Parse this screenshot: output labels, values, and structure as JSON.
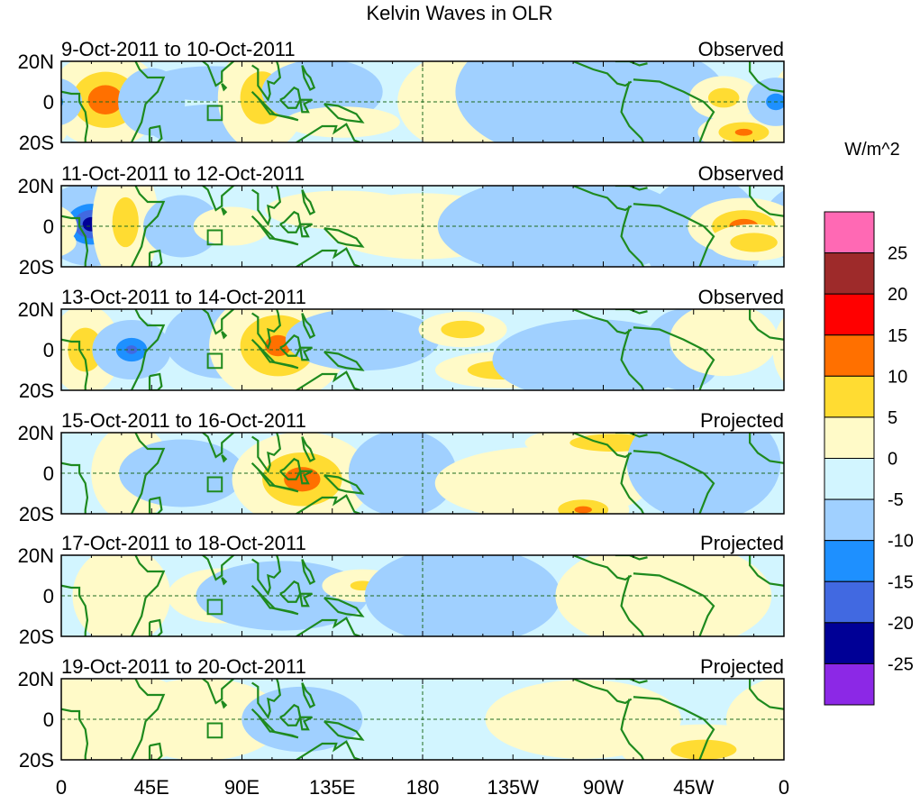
{
  "chart_data": {
    "type": "heatmap",
    "title": "Kelvin Waves in OLR",
    "units_label": "W/m^2",
    "x_ticks": [
      "0",
      "45E",
      "90E",
      "135E",
      "180",
      "135W",
      "90W",
      "45W",
      "0"
    ],
    "x_tick_values": [
      0,
      45,
      90,
      135,
      180,
      225,
      270,
      315,
      360
    ],
    "y_ticks": [
      "20N",
      "0",
      "20S"
    ],
    "lat_range": [
      -20,
      20
    ],
    "lon_range": [
      0,
      360
    ],
    "colorbar": {
      "levels": [
        -25,
        -20,
        -15,
        -10,
        -5,
        0,
        5,
        10,
        15,
        20,
        25
      ],
      "labels": [
        "25",
        "20",
        "15",
        "10",
        "5",
        "0",
        "-5",
        "-10",
        "-15",
        "-20",
        "-25"
      ],
      "colors": [
        "#8c28e6",
        "#000096",
        "#4169e1",
        "#1e90ff",
        "#a0d0ff",
        "#d2f5ff",
        "#fffac8",
        "#ffdc32",
        "#ff7000",
        "#ff0000",
        "#9e2a2a",
        "#ff69b4"
      ]
    },
    "panels": [
      {
        "period": "9-Oct-2011 to 10-Oct-2011",
        "kind": "Observed",
        "anomalies": [
          [
            10,
            0,
            8,
            6,
            -12
          ],
          [
            22,
            1,
            12,
            10,
            13
          ],
          [
            45,
            0,
            8,
            8,
            -7
          ],
          [
            75,
            9,
            15,
            4,
            -8
          ],
          [
            75,
            -12,
            15,
            5,
            -8
          ],
          [
            100,
            2,
            10,
            12,
            9
          ],
          [
            130,
            5,
            15,
            8,
            -6
          ],
          [
            140,
            -10,
            15,
            4,
            5
          ],
          [
            200,
            0,
            20,
            15,
            3
          ],
          [
            215,
            2,
            20,
            8,
            4
          ],
          [
            250,
            5,
            25,
            15,
            -8
          ],
          [
            300,
            -2,
            15,
            12,
            -9
          ],
          [
            330,
            2,
            8,
            5,
            8
          ],
          [
            340,
            -15,
            10,
            4,
            11
          ],
          [
            356,
            0,
            6,
            5,
            -14
          ]
        ]
      },
      {
        "period": "11-Oct-2011 to 12-Oct-2011",
        "kind": "Observed",
        "anomalies": [
          [
            15,
            1,
            10,
            8,
            -22
          ],
          [
            32,
            2,
            8,
            15,
            7
          ],
          [
            60,
            0,
            10,
            8,
            -5
          ],
          [
            85,
            0,
            10,
            5,
            5
          ],
          [
            140,
            8,
            20,
            5,
            5
          ],
          [
            180,
            0,
            30,
            10,
            3
          ],
          [
            250,
            0,
            30,
            12,
            -7
          ],
          [
            320,
            -5,
            15,
            15,
            -6
          ],
          [
            340,
            0,
            12,
            6,
            12
          ],
          [
            345,
            -8,
            10,
            4,
            10
          ]
        ]
      },
      {
        "period": "13-Oct-2011 to 14-Oct-2011",
        "kind": "Observed",
        "anomalies": [
          [
            12,
            0,
            8,
            10,
            9
          ],
          [
            35,
            0,
            8,
            6,
            -16
          ],
          [
            80,
            5,
            15,
            10,
            -5
          ],
          [
            108,
            2,
            15,
            12,
            11
          ],
          [
            150,
            5,
            20,
            8,
            -5
          ],
          [
            200,
            10,
            10,
            4,
            9
          ],
          [
            220,
            -10,
            15,
            4,
            10
          ],
          [
            265,
            -5,
            25,
            10,
            -6
          ],
          [
            310,
            0,
            10,
            10,
            -6
          ],
          [
            330,
            5,
            15,
            10,
            4
          ]
        ]
      },
      {
        "period": "15-Oct-2011 to 16-Oct-2011",
        "kind": "Projected",
        "anomalies": [
          [
            35,
            0,
            10,
            12,
            6
          ],
          [
            60,
            0,
            15,
            8,
            -7
          ],
          [
            120,
            -3,
            15,
            10,
            12
          ],
          [
            170,
            0,
            15,
            12,
            -4
          ],
          [
            240,
            -5,
            30,
            10,
            4
          ],
          [
            275,
            15,
            20,
            4,
            9
          ],
          [
            260,
            -18,
            10,
            4,
            11
          ],
          [
            320,
            5,
            20,
            15,
            -5
          ]
        ]
      },
      {
        "period": "17-Oct-2011 to 18-Oct-2011",
        "kind": "Projected",
        "anomalies": [
          [
            30,
            0,
            15,
            15,
            3
          ],
          [
            80,
            0,
            20,
            10,
            2
          ],
          [
            110,
            0,
            20,
            8,
            -8
          ],
          [
            150,
            5,
            10,
            4,
            6
          ],
          [
            200,
            0,
            30,
            15,
            -3
          ],
          [
            300,
            0,
            30,
            15,
            4
          ]
        ]
      },
      {
        "period": "19-Oct-2011 to 20-Oct-2011",
        "kind": "Projected",
        "anomalies": [
          [
            20,
            0,
            30,
            15,
            3
          ],
          [
            70,
            0,
            30,
            15,
            2
          ],
          [
            120,
            0,
            15,
            8,
            -6
          ],
          [
            260,
            0,
            30,
            12,
            3
          ],
          [
            320,
            -15,
            20,
            6,
            7
          ]
        ]
      }
    ]
  }
}
